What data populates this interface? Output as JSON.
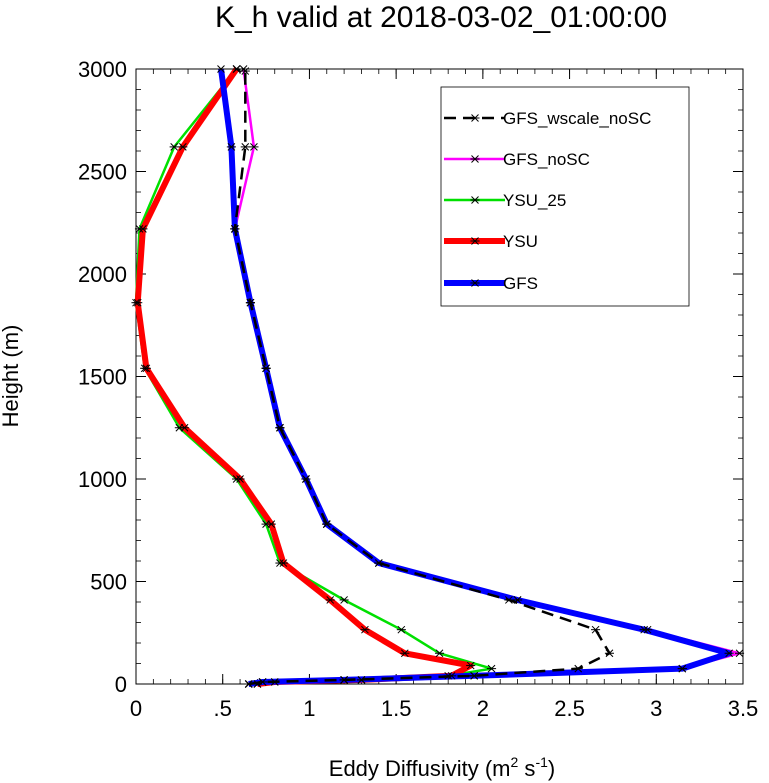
{
  "chart_data": {
    "type": "line",
    "title": "K_h valid at 2018-03-02_01:00:00",
    "xlabel": "Eddy Diffusivity (m",
    "xlabel_sup1": "2",
    "xlabel_mid": " s",
    "xlabel_sup2": "-1",
    "xlabel_end": ")",
    "ylabel": "Height (m)",
    "xlim": [
      0,
      3.5
    ],
    "ylim": [
      0,
      3000
    ],
    "xticks": [
      0,
      0.5,
      1,
      1.5,
      2,
      2.5,
      3,
      3.5
    ],
    "xtick_labels": [
      "0",
      ".5",
      "1",
      "1.5",
      "2",
      "2.5",
      "3",
      "3.5"
    ],
    "yticks": [
      0,
      500,
      1000,
      1500,
      2000,
      2500,
      3000
    ],
    "ytick_labels": [
      "0",
      "500",
      "1000",
      "1500",
      "2000",
      "2500",
      "3000"
    ],
    "legend_position": "top-right",
    "series": [
      {
        "name": "GFS_wscale_noSC",
        "color": "#000000",
        "dashed": true,
        "width": 2.5,
        "x": [
          0.65,
          0.73,
          1.2,
          1.95,
          2.55,
          2.73,
          2.65,
          2.15,
          1.4,
          1.1,
          0.98,
          0.83,
          0.75,
          0.66,
          0.57,
          0.63,
          0.63,
          0.58
        ],
        "y": [
          0,
          10,
          20,
          40,
          75,
          150,
          265,
          410,
          590,
          780,
          1000,
          1250,
          1540,
          1860,
          2220,
          2620,
          2990,
          3000
        ]
      },
      {
        "name": "GFS_noSC",
        "color": "#ff00ff",
        "dashed": false,
        "width": 2.5,
        "x": [
          0.65,
          0.73,
          1.2,
          1.95,
          3.15,
          3.48,
          2.95,
          2.2,
          1.4,
          1.1,
          0.98,
          0.83,
          0.75,
          0.66,
          0.57,
          0.68,
          0.62
        ],
        "y": [
          0,
          10,
          20,
          40,
          75,
          150,
          265,
          410,
          590,
          780,
          1000,
          1250,
          1540,
          1860,
          2220,
          2620,
          3000
        ]
      },
      {
        "name": "YSU_25",
        "color": "#00e000",
        "dashed": false,
        "width": 2.5,
        "x": [
          0.7,
          0.8,
          1.3,
          1.8,
          2.05,
          1.75,
          1.53,
          1.2,
          0.83,
          0.75,
          0.58,
          0.25,
          0.05,
          0.0,
          0.02,
          0.22,
          0.58
        ],
        "y": [
          0,
          10,
          20,
          40,
          75,
          150,
          265,
          410,
          590,
          780,
          1000,
          1250,
          1540,
          1860,
          2220,
          2620,
          3000
        ]
      },
      {
        "name": "YSU",
        "color": "#ff0000",
        "dashed": false,
        "width": 6,
        "x": [
          0.7,
          0.8,
          1.3,
          1.82,
          1.93,
          1.55,
          1.32,
          1.12,
          0.85,
          0.78,
          0.6,
          0.28,
          0.06,
          0.01,
          0.04,
          0.27,
          0.58
        ],
        "y": [
          0,
          10,
          20,
          40,
          90,
          150,
          265,
          410,
          590,
          780,
          1000,
          1250,
          1540,
          1860,
          2220,
          2620,
          3000
        ]
      },
      {
        "name": "GFS",
        "color": "#0000ff",
        "dashed": false,
        "width": 6,
        "x": [
          0.65,
          0.73,
          1.2,
          1.95,
          3.15,
          3.42,
          2.93,
          2.2,
          1.4,
          1.1,
          0.98,
          0.83,
          0.75,
          0.66,
          0.57,
          0.55,
          0.49
        ],
        "y": [
          0,
          10,
          20,
          40,
          75,
          150,
          265,
          410,
          590,
          780,
          1000,
          1250,
          1540,
          1860,
          2220,
          2620,
          3000
        ]
      }
    ]
  }
}
